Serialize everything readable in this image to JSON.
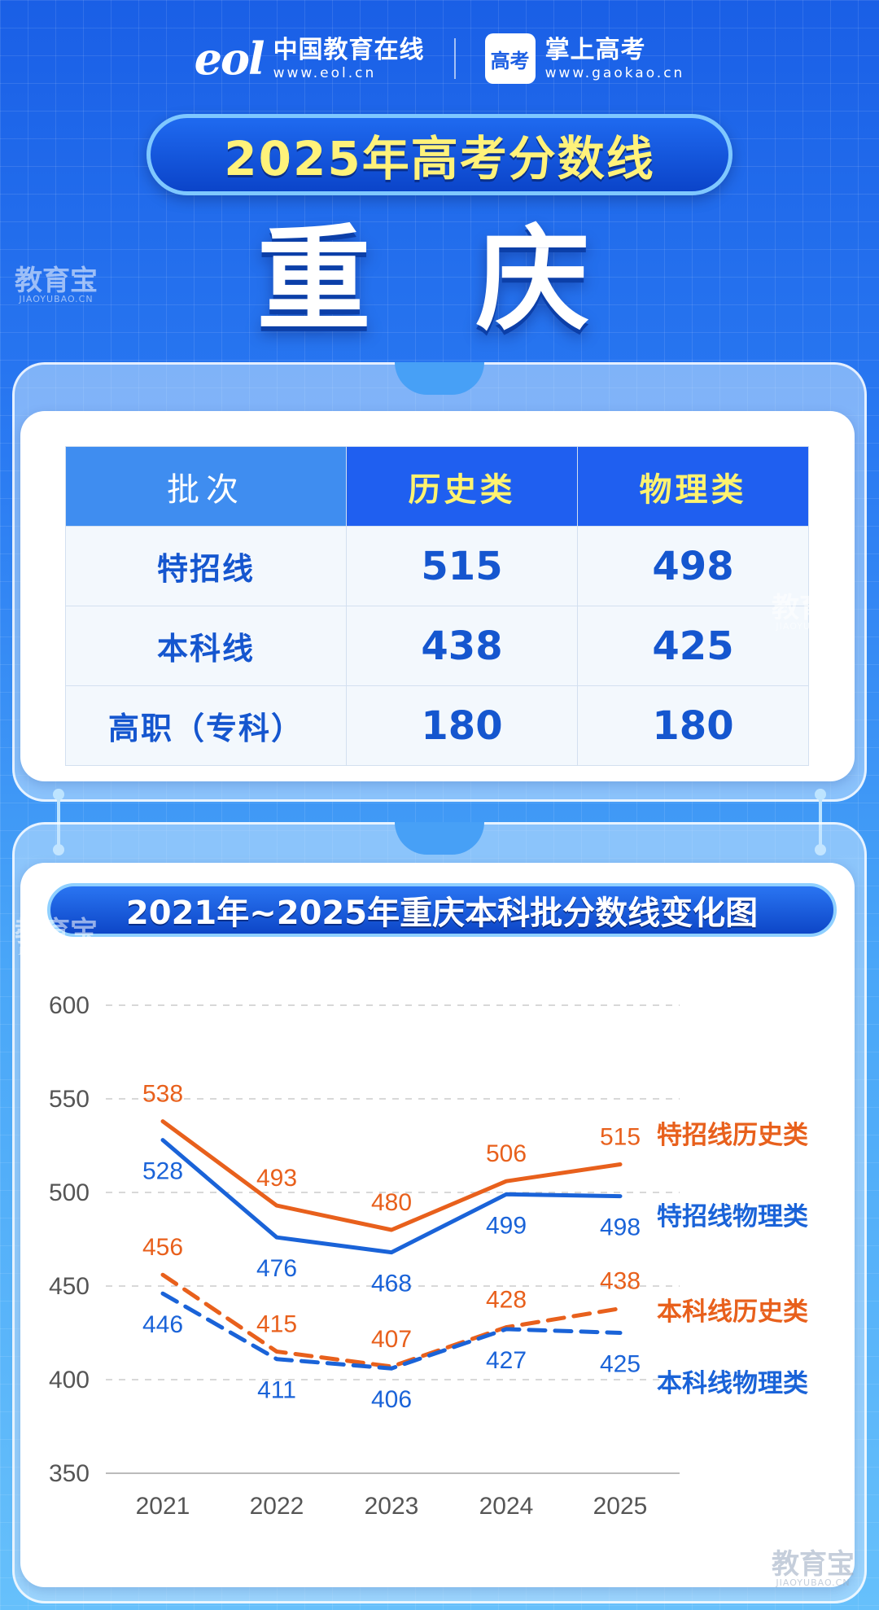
{
  "header": {
    "eol_logo": "eol",
    "eol_name": "中国教育在线",
    "eol_url": "www.eol.cn",
    "gk_logo": "高考",
    "gk_name": "掌上高考",
    "gk_url": "www.gaokao.cn"
  },
  "title": "2025年高考分数线",
  "region": "重 庆",
  "watermark": {
    "cn": "教育宝",
    "en": "JIAOYUBAO.CN"
  },
  "table": {
    "headers": [
      "批次",
      "历史类",
      "物理类"
    ],
    "rows": [
      [
        "特招线",
        "515",
        "498"
      ],
      [
        "本科线",
        "438",
        "425"
      ],
      [
        "高职（专科）",
        "180",
        "180"
      ]
    ]
  },
  "chart_title": "2021年~2025年重庆本科批分数线变化图",
  "colors": {
    "orange": "#e8601c",
    "blue": "#1a63d8"
  },
  "chart_data": {
    "type": "line",
    "x": [
      "2021",
      "2022",
      "2023",
      "2024",
      "2025"
    ],
    "ylim": [
      350,
      600
    ],
    "yticks": [
      600,
      550,
      500,
      450,
      400,
      350
    ],
    "grid": true,
    "legend_position": "right",
    "series": [
      {
        "name": "特招线历史类",
        "values": [
          538,
          493,
          480,
          506,
          515
        ],
        "color": "#e8601c",
        "dashed": false,
        "label_side": "above"
      },
      {
        "name": "特招线物理类",
        "values": [
          528,
          476,
          468,
          499,
          498
        ],
        "color": "#1a63d8",
        "dashed": false,
        "label_side": "below"
      },
      {
        "name": "本科线历史类",
        "values": [
          456,
          415,
          407,
          428,
          438
        ],
        "color": "#e8601c",
        "dashed": true,
        "label_side": "above"
      },
      {
        "name": "本科线物理类",
        "values": [
          446,
          411,
          406,
          427,
          425
        ],
        "color": "#1a63d8",
        "dashed": true,
        "label_side": "below"
      }
    ]
  }
}
